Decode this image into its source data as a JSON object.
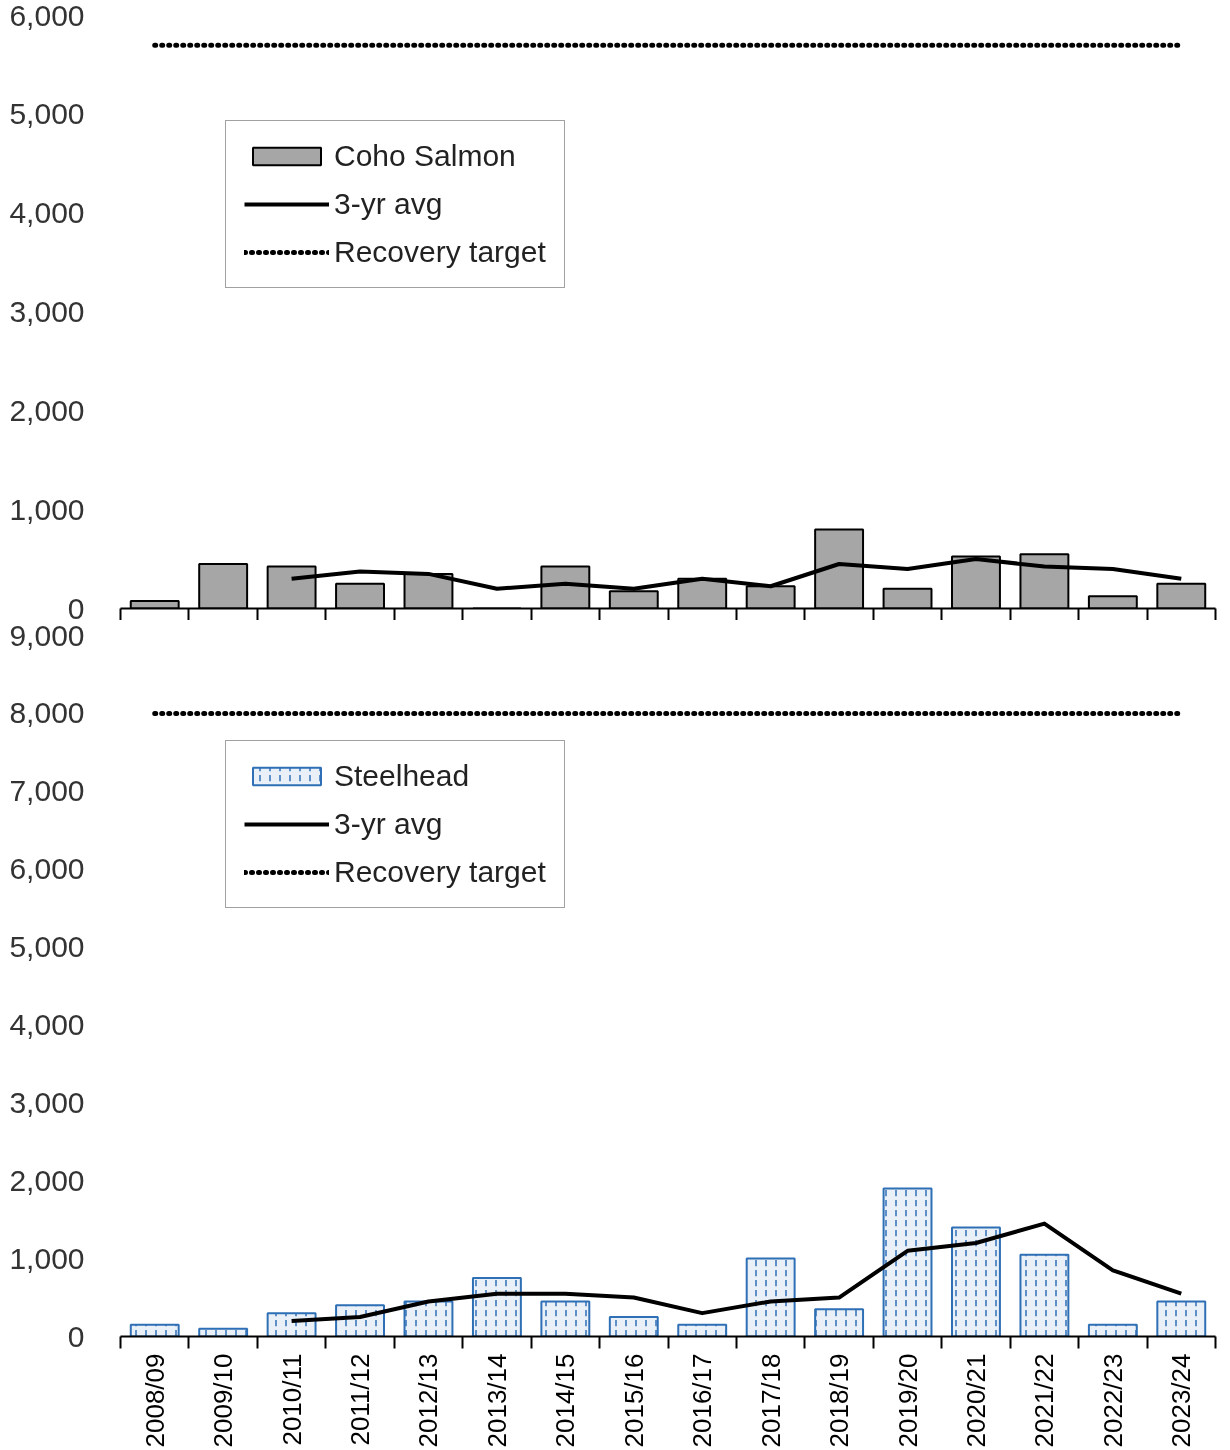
{
  "chart_data": [
    {
      "type": "bar",
      "categories": [
        "2008/09",
        "2009/10",
        "2010/11",
        "2011/12",
        "2012/13",
        "2013/14",
        "2014/15",
        "2015/16",
        "2016/17",
        "2017/18",
        "2018/19",
        "2019/20",
        "2020/21",
        "2021/22",
        "2022/23",
        "2023/24"
      ],
      "series": [
        {
          "name": "Coho Salmon",
          "color": "#a6a6a6",
          "values": [
            75,
            450,
            425,
            250,
            350,
            0,
            425,
            175,
            300,
            225,
            800,
            200,
            525,
            550,
            125,
            250
          ]
        },
        {
          "name": "3-yr avg",
          "type": "line",
          "color": "#000000",
          "values": [
            null,
            null,
            300,
            375,
            350,
            200,
            250,
            200,
            300,
            225,
            450,
            400,
            500,
            425,
            400,
            300
          ]
        }
      ],
      "ref_lines": [
        {
          "axis": "y",
          "value": 5700,
          "label": "Recovery target",
          "color": "#000000",
          "line_style": "dotted"
        }
      ],
      "ylim": [
        0,
        6000
      ],
      "yticks": [
        {
          "value": 0,
          "label": "0"
        },
        {
          "value": 1000,
          "label": "1,000"
        },
        {
          "value": 2000,
          "label": "2,000"
        },
        {
          "value": 3000,
          "label": "3,000"
        },
        {
          "value": 4000,
          "label": "4,000"
        },
        {
          "value": 5000,
          "label": "5,000"
        },
        {
          "value": 6000,
          "label": "6,000"
        }
      ],
      "tick_labels": "y",
      "legend": "top left",
      "grid": false
    },
    {
      "type": "bar",
      "categories": [
        "2008/09",
        "2009/10",
        "2010/11",
        "2011/12",
        "2012/13",
        "2013/14",
        "2014/15",
        "2015/16",
        "2016/17",
        "2017/18",
        "2018/19",
        "2019/20",
        "2020/21",
        "2021/22",
        "2022/23",
        "2023/24"
      ],
      "series": [
        {
          "name": "Steelhead",
          "color": "#2e6fb5",
          "values": [
            150,
            100,
            300,
            400,
            450,
            750,
            450,
            250,
            150,
            1000,
            350,
            1900,
            1400,
            1050,
            150,
            450
          ]
        },
        {
          "name": "3-yr avg",
          "type": "line",
          "color": "#000000",
          "values": [
            null,
            null,
            200,
            250,
            450,
            550,
            550,
            500,
            300,
            450,
            500,
            1100,
            1200,
            1450,
            850,
            550
          ]
        }
      ],
      "ref_lines": [
        {
          "axis": "y",
          "value": 8000,
          "label": "Recovery target",
          "color": "#000000",
          "line_style": "dotted"
        }
      ],
      "ylim": [
        0,
        9000
      ],
      "yticks": [
        {
          "value": 0,
          "label": "0"
        },
        {
          "value": 1000,
          "label": "1,000"
        },
        {
          "value": 2000,
          "label": "2,000"
        },
        {
          "value": 3000,
          "label": "3,000"
        },
        {
          "value": 4000,
          "label": "4,000"
        },
        {
          "value": 5000,
          "label": "5,000"
        },
        {
          "value": 6000,
          "label": "6,000"
        },
        {
          "value": 7000,
          "label": "7,000"
        },
        {
          "value": 8000,
          "label": "8,000"
        },
        {
          "value": 9000,
          "label": "9,000"
        }
      ],
      "legend": "top left",
      "grid": false
    }
  ]
}
